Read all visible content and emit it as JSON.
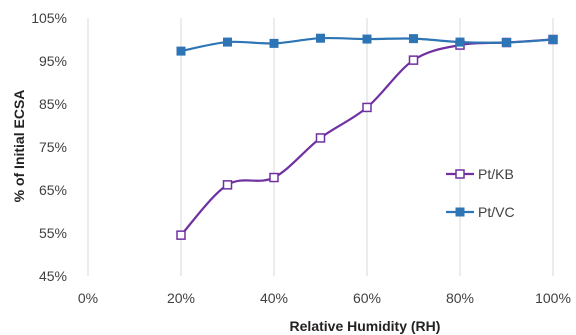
{
  "chart_data": {
    "type": "line",
    "xlabel": "Relative Humidity (RH)",
    "ylabel": "% of Initial ECSA",
    "x_ticks": [
      "0%",
      "20%",
      "40%",
      "60%",
      "80%",
      "100%"
    ],
    "y_ticks": [
      "45%",
      "55%",
      "65%",
      "75%",
      "85%",
      "95%",
      "105%"
    ],
    "xlim": [
      0,
      100
    ],
    "ylim": [
      45,
      105
    ],
    "grid": "vertical",
    "legend_position": "right",
    "series": [
      {
        "name": "Pt/KB",
        "color": "#7030a0",
        "marker": "hollow-square",
        "x": [
          20,
          30,
          40,
          50,
          60,
          70,
          80,
          90,
          100
        ],
        "y": [
          54.5,
          66.2,
          67.9,
          77.1,
          84.2,
          95.2,
          98.7,
          99.3,
          100.0
        ]
      },
      {
        "name": "Pt/VC",
        "color": "#2e75b6",
        "marker": "filled-square",
        "x": [
          20,
          30,
          40,
          50,
          60,
          70,
          80,
          90,
          100
        ],
        "y": [
          97.3,
          99.4,
          99.1,
          100.3,
          100.1,
          100.2,
          99.4,
          99.3,
          100.0
        ]
      }
    ]
  }
}
